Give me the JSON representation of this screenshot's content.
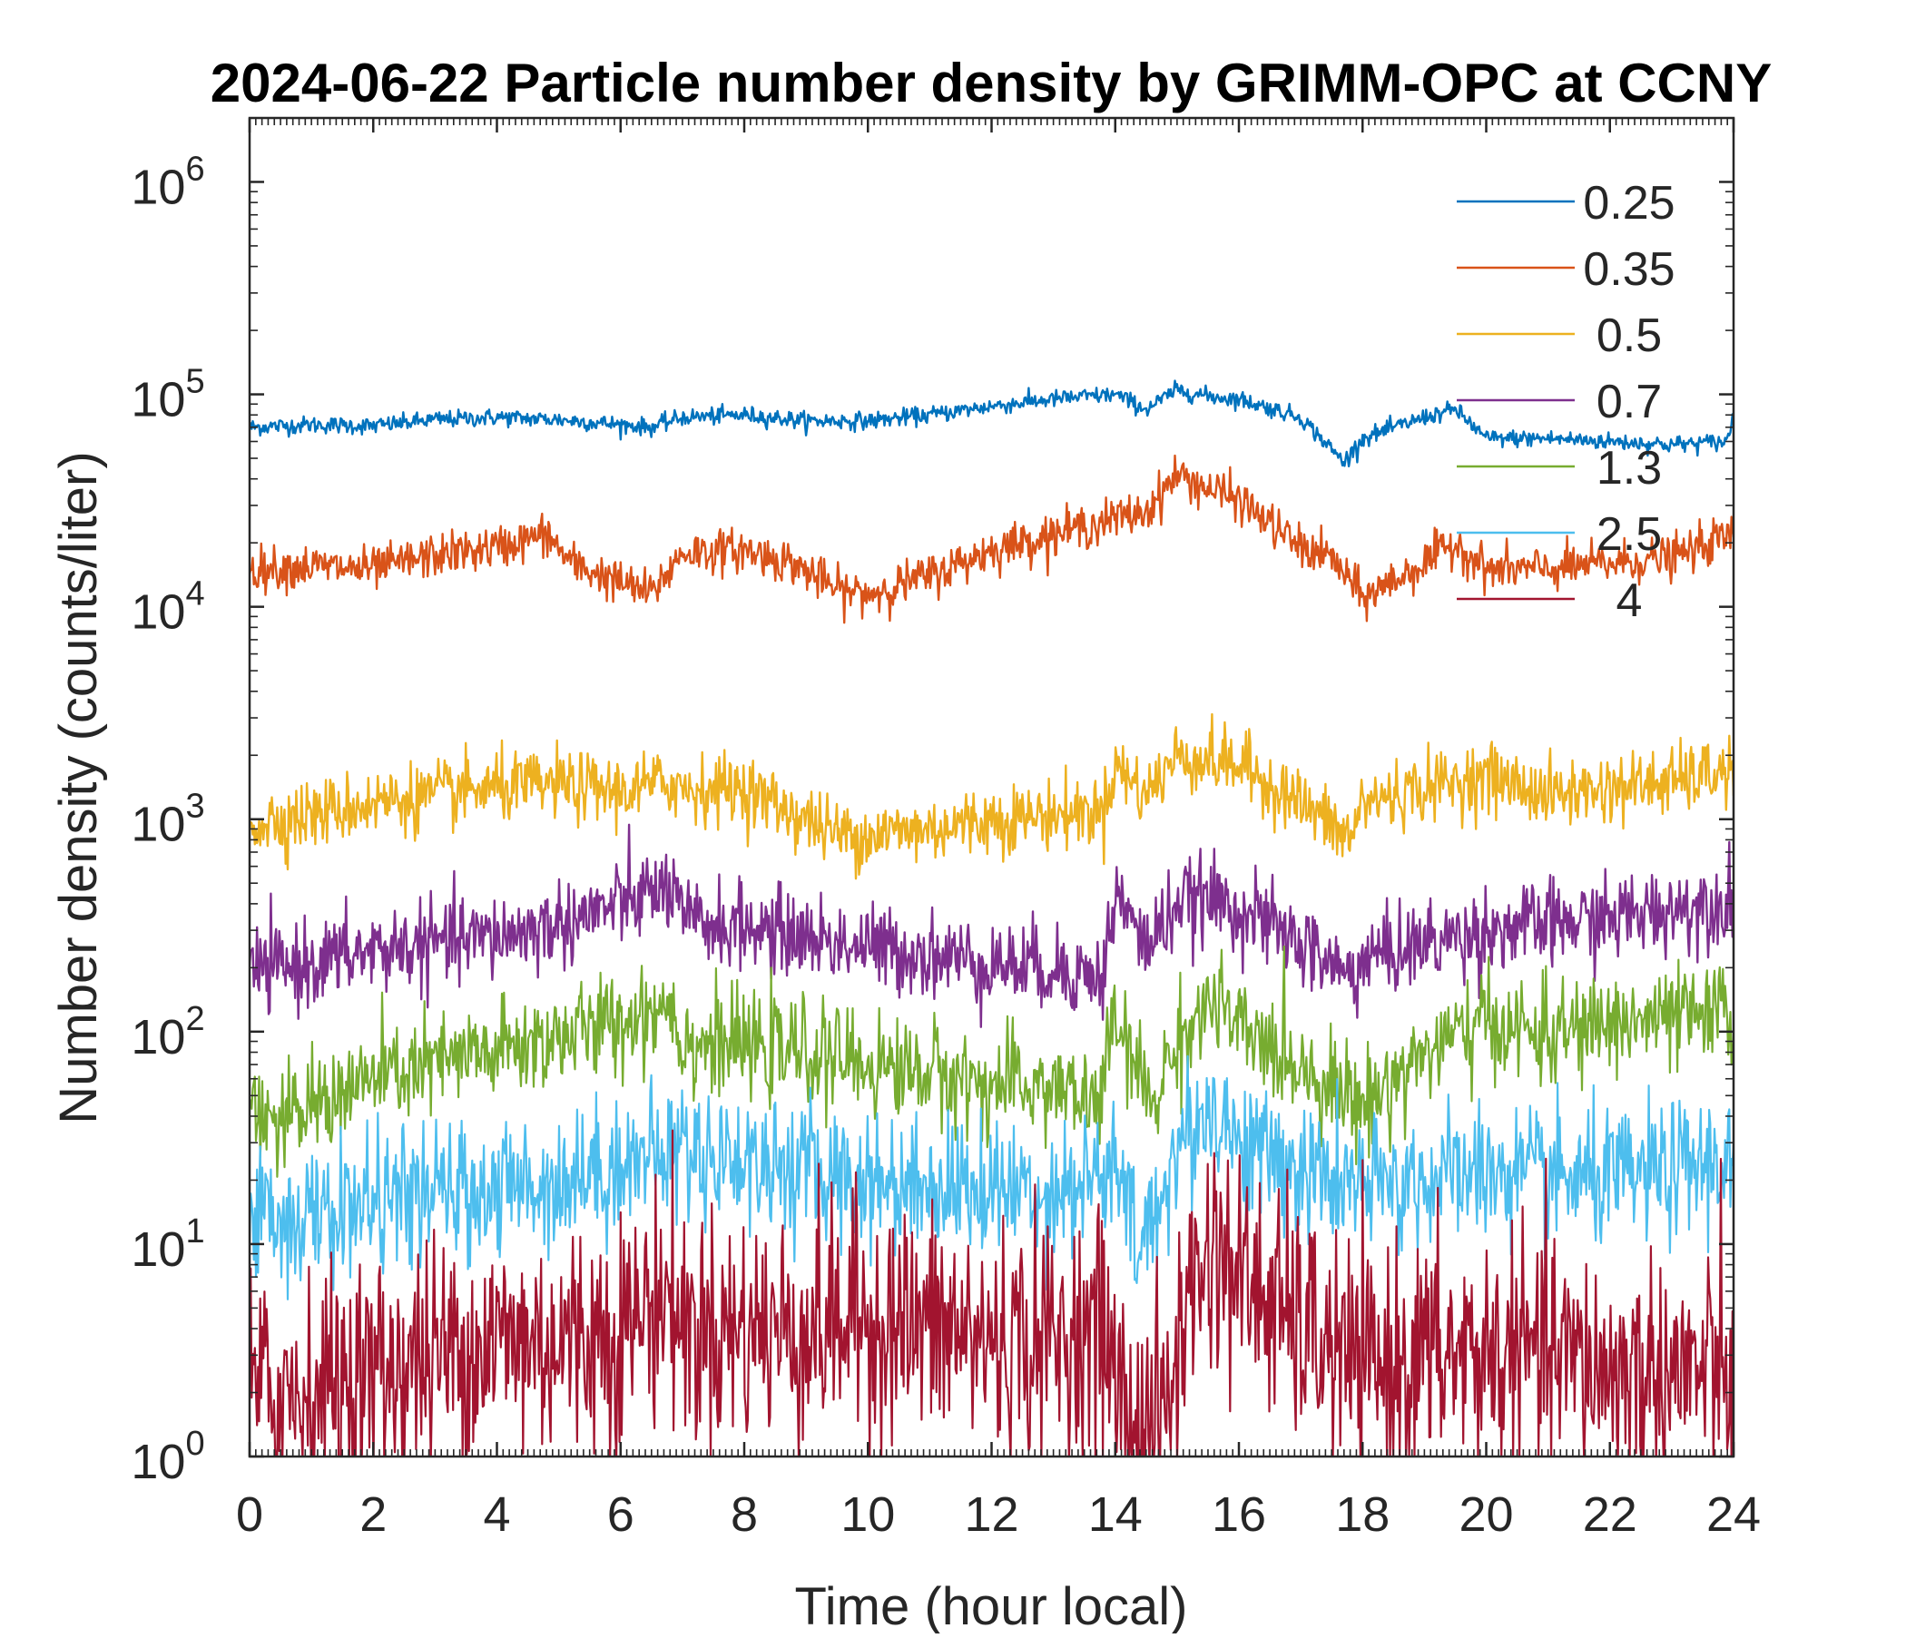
{
  "chart_data": {
    "type": "line",
    "title": "2024-06-22 Particle number density by GRIMM-OPC at CCNY",
    "xlabel": "Time (hour local)",
    "ylabel": "Number density (counts/liter)",
    "xlim": [
      0,
      24
    ],
    "ylim": [
      1,
      2000000
    ],
    "yscale": "log",
    "xticks": [
      0,
      2,
      4,
      6,
      8,
      10,
      12,
      14,
      16,
      18,
      20,
      22,
      24
    ],
    "xtick_labels": [
      "0",
      "2",
      "4",
      "6",
      "8",
      "10",
      "12",
      "14",
      "16",
      "18",
      "20",
      "22",
      "24"
    ],
    "ytick_exponents": [
      0,
      1,
      2,
      3,
      4,
      5,
      6
    ],
    "ytick_base": "10",
    "grid": false,
    "legend_position": "top-right",
    "series": [
      {
        "name": "0.25",
        "color": "#0072BD",
        "noise": 0.02,
        "x": [
          0,
          1,
          2,
          3,
          4,
          5,
          6,
          6.5,
          7,
          8,
          9,
          10,
          11,
          12,
          13,
          14,
          14.5,
          15,
          15.5,
          16,
          17,
          17.7,
          18,
          19,
          19.5,
          20,
          21,
          22,
          23,
          23.9,
          24
        ],
        "values": [
          70000,
          72000,
          71000,
          76000,
          78000,
          76000,
          72000,
          70000,
          78000,
          80000,
          75000,
          75000,
          80000,
          88000,
          95000,
          100000,
          85000,
          105000,
          98000,
          95000,
          78000,
          48000,
          62000,
          78000,
          85000,
          62000,
          62000,
          60000,
          58000,
          60000,
          82000
        ]
      },
      {
        "name": "0.35",
        "color": "#D95319",
        "noise": 0.05,
        "x": [
          0,
          1,
          2,
          3,
          4,
          4.8,
          5.2,
          6,
          6.5,
          7,
          8,
          8.8,
          9.5,
          10,
          11,
          12,
          13,
          14,
          14.5,
          15,
          15.5,
          16,
          17,
          17.5,
          18,
          19,
          19.5,
          20,
          21,
          22,
          23,
          24
        ],
        "values": [
          15000,
          15500,
          15000,
          17500,
          19000,
          22000,
          16000,
          13000,
          11500,
          18000,
          18500,
          16000,
          12000,
          11500,
          14000,
          18500,
          22000,
          26000,
          28000,
          42000,
          36000,
          32000,
          19000,
          17000,
          11000,
          16000,
          20000,
          15000,
          15000,
          16000,
          17000,
          22000
        ]
      },
      {
        "name": "0.5",
        "color": "#EDB120",
        "noise": 0.08,
        "x": [
          0,
          1,
          2,
          3,
          4,
          5,
          6,
          6.8,
          7,
          8,
          9,
          9.5,
          10,
          11,
          12,
          13,
          13.8,
          14,
          14.5,
          15,
          16,
          17,
          17.8,
          18,
          19,
          20,
          21,
          22,
          23,
          24
        ],
        "values": [
          950,
          1050,
          1200,
          1300,
          1400,
          1450,
          1350,
          1500,
          1400,
          1400,
          1000,
          850,
          850,
          900,
          1000,
          1050,
          1100,
          1800,
          1300,
          2000,
          1800,
          1200,
          800,
          1200,
          1400,
          1600,
          1300,
          1400,
          1500,
          1700
        ]
      },
      {
        "name": "0.7",
        "color": "#7E2F8E",
        "noise": 0.1,
        "x": [
          0,
          1,
          2,
          3,
          4,
          5,
          6,
          6.8,
          7,
          8,
          9,
          10,
          11,
          12,
          13,
          13.8,
          14,
          14.5,
          15,
          15.5,
          16,
          17,
          17.8,
          18,
          19,
          20,
          21,
          22,
          23,
          24
        ],
        "values": [
          190,
          210,
          240,
          260,
          280,
          320,
          400,
          480,
          330,
          310,
          280,
          250,
          230,
          210,
          200,
          180,
          450,
          250,
          400,
          420,
          380,
          260,
          180,
          220,
          260,
          300,
          320,
          340,
          380,
          420
        ]
      },
      {
        "name": "1.3",
        "color": "#77AC30",
        "noise": 0.12,
        "x": [
          0,
          0.5,
          1,
          2,
          3,
          4,
          5,
          6,
          6.8,
          7,
          8,
          9,
          10,
          11,
          12,
          13,
          13.7,
          14,
          14.6,
          15,
          15.6,
          16,
          17,
          18,
          18.5,
          19,
          20,
          21,
          22,
          23,
          24
        ],
        "values": [
          50,
          35,
          45,
          60,
          70,
          80,
          95,
          110,
          140,
          90,
          85,
          80,
          70,
          65,
          55,
          55,
          45,
          110,
          45,
          90,
          140,
          100,
          70,
          45,
          60,
          80,
          110,
          95,
          110,
          115,
          120
        ]
      },
      {
        "name": "2.5",
        "color": "#4DBEEE",
        "noise": 0.16,
        "x": [
          0,
          1,
          2,
          3,
          4,
          5,
          6,
          7,
          8,
          9,
          10,
          11,
          12,
          13,
          14,
          14.4,
          15,
          15.6,
          16,
          17,
          18,
          19,
          20,
          21,
          22,
          23,
          24
        ],
        "values": [
          14,
          13,
          16,
          17,
          18,
          20,
          24,
          28,
          25,
          22,
          20,
          19,
          18,
          18,
          22,
          9,
          28,
          45,
          30,
          22,
          18,
          20,
          22,
          20,
          20,
          22,
          25
        ]
      },
      {
        "name": "4",
        "color": "#A2142F",
        "noise": 0.28,
        "x": [
          0,
          1,
          2,
          3,
          4,
          5,
          6,
          6.8,
          7,
          8,
          9,
          10,
          11,
          12,
          13,
          13.8,
          14.2,
          14.8,
          15.2,
          15.6,
          16,
          17,
          18,
          19,
          20,
          21,
          22,
          23,
          24
        ],
        "values": [
          2,
          2,
          2.5,
          3,
          3.5,
          3.5,
          4,
          6,
          4,
          4,
          4,
          4.5,
          4,
          3.5,
          3.5,
          4,
          1.5,
          1.5,
          6,
          10,
          7,
          4,
          2.5,
          3,
          3,
          3,
          2.5,
          2.5,
          2.5
        ]
      }
    ]
  }
}
